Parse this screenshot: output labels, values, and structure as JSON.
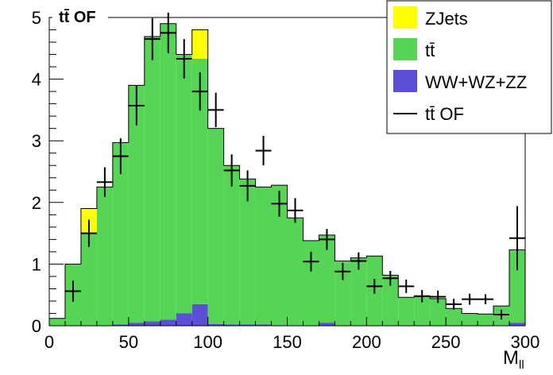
{
  "chart_data": {
    "type": "bar",
    "title": "tt̄ OF",
    "xlabel": "M",
    "xlabel_sub": "ll",
    "ylabel": "",
    "xlim": [
      0,
      300
    ],
    "ylim": [
      0,
      5
    ],
    "bin_width": 10,
    "x_ticks": [
      "0",
      "50",
      "100",
      "150",
      "200",
      "250",
      "300"
    ],
    "y_ticks": [
      "0",
      "1",
      "2",
      "3",
      "4",
      "5"
    ],
    "grid": false,
    "legend_placement": "top-right",
    "stacked": true,
    "bin_lows": [
      0,
      10,
      20,
      30,
      40,
      50,
      60,
      70,
      80,
      90,
      100,
      110,
      120,
      130,
      140,
      150,
      160,
      170,
      180,
      190,
      200,
      210,
      220,
      230,
      240,
      250,
      260,
      270,
      280,
      290
    ],
    "series": [
      {
        "name": "WW+WZ+ZZ",
        "color": "#5a4fd6",
        "values": [
          0,
          0,
          0,
          0,
          0.02,
          0.05,
          0.07,
          0.1,
          0.2,
          0.35,
          0.03,
          0.02,
          0.02,
          0.02,
          0.01,
          0.01,
          0,
          0.05,
          0,
          0,
          0,
          0,
          0,
          0,
          0,
          0,
          0,
          0,
          0.01,
          0.05
        ]
      },
      {
        "name": "tt̄",
        "color": "#56d456",
        "values": [
          0.12,
          1.0,
          1.5,
          2.25,
          2.95,
          3.85,
          4.62,
          4.8,
          4.2,
          3.98,
          3.17,
          2.58,
          2.36,
          2.23,
          2.27,
          1.74,
          1.38,
          1.42,
          1.05,
          1.1,
          1.13,
          0.82,
          0.46,
          0.48,
          0.44,
          0.28,
          0.2,
          0.19,
          0.31,
          1.18
        ]
      },
      {
        "name": "ZJets",
        "color": "#ffff00",
        "values": [
          0,
          0,
          0.4,
          0,
          0,
          0,
          0,
          0,
          0,
          0.47,
          0,
          0,
          0,
          0,
          0,
          0,
          0,
          0,
          0,
          0,
          0,
          0,
          0,
          0,
          0,
          0,
          0,
          0,
          0,
          0
        ]
      }
    ],
    "data_points": {
      "name": "tt̄ OF",
      "x": [
        15,
        25,
        35,
        45,
        55,
        65,
        75,
        85,
        95,
        105,
        115,
        125,
        135,
        145,
        155,
        165,
        175,
        185,
        195,
        205,
        215,
        225,
        235,
        245,
        255,
        265,
        275,
        285,
        295
      ],
      "y": [
        0.56,
        1.5,
        2.33,
        2.75,
        3.57,
        4.65,
        4.75,
        4.33,
        3.8,
        3.5,
        2.52,
        2.27,
        2.84,
        1.98,
        1.87,
        1.04,
        1.4,
        0.88,
        1.05,
        0.64,
        0.77,
        0.64,
        0.48,
        0.47,
        0.35,
        0.43,
        0.43,
        0.18,
        1.42
      ],
      "err": [
        0.17,
        0.22,
        0.24,
        0.29,
        0.32,
        0.34,
        0.33,
        0.32,
        0.31,
        0.28,
        0.26,
        0.25,
        0.24,
        0.21,
        0.2,
        0.16,
        0.17,
        0.14,
        0.14,
        0.12,
        0.12,
        0.11,
        0.1,
        0.1,
        0.09,
        0.09,
        0.08,
        0.08,
        0.52
      ]
    }
  },
  "legend": {
    "entries": [
      {
        "label": "ZJets",
        "kind": "fill",
        "color": "#ffff00"
      },
      {
        "label": "tt̄",
        "kind": "fill",
        "color": "#56d456"
      },
      {
        "label": "WW+WZ+ZZ",
        "kind": "fill",
        "color": "#5a4fd6"
      },
      {
        "label": "tt̄ OF",
        "kind": "line",
        "color": "#000000"
      }
    ]
  }
}
